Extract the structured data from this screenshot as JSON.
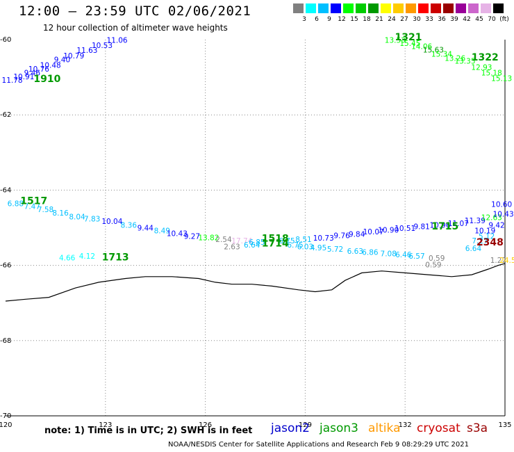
{
  "header": {
    "title": "12:00 – 23:59 UTC 02/06/2021",
    "subtitle": "12 hour collection of altimeter wave heights"
  },
  "legend": {
    "colors": [
      "#808080",
      "#00ffff",
      "#00bfff",
      "#0000ff",
      "#00ff00",
      "#00cc00",
      "#009900",
      "#ffff00",
      "#ffcc00",
      "#ff9900",
      "#ff0000",
      "#cc0000",
      "#990000",
      "#990099",
      "#cc66cc",
      "#e6b3e6",
      "#000000"
    ],
    "labels": [
      "3",
      "6",
      "9",
      "12",
      "15",
      "18",
      "21",
      "24",
      "27",
      "30",
      "33",
      "36",
      "39",
      "42",
      "45",
      "70",
      "(ft)"
    ]
  },
  "footer": {
    "note": "note: 1) Time is in UTC; 2) SWH is in feet",
    "satellites": [
      {
        "name": "jason2",
        "color": "#0000cc"
      },
      {
        "name": "jason3",
        "color": "#009900"
      },
      {
        "name": "altika",
        "color": "#ff9900"
      },
      {
        "name": "cryosat",
        "color": "#cc0000"
      },
      {
        "name": "s3a",
        "color": "#990000"
      }
    ],
    "credit": "NOAA/NESDIS Center for Satellite Applications and Research    Feb  9 08:29:29 UTC 2021"
  },
  "chart_data": {
    "type": "scatter",
    "title": "12:00 – 23:59 UTC 02/06/2021",
    "subtitle": "12 hour collection of altimeter wave heights",
    "units": "ft",
    "xlim": [
      120,
      135
    ],
    "ylim": [
      -70,
      -60
    ],
    "x_ticks": [
      120,
      123,
      126,
      129,
      132,
      135
    ],
    "y_ticks": [
      -60,
      -62,
      -64,
      -66,
      -68,
      -70
    ],
    "grid": true,
    "coast": [
      [
        120,
        -66.95
      ],
      [
        120.6,
        -66.9
      ],
      [
        121.3,
        -66.85
      ],
      [
        122.1,
        -66.6
      ],
      [
        122.8,
        -66.45
      ],
      [
        123.6,
        -66.35
      ],
      [
        124.2,
        -66.3
      ],
      [
        125,
        -66.3
      ],
      [
        125.8,
        -66.35
      ],
      [
        126.3,
        -66.45
      ],
      [
        126.8,
        -66.5
      ],
      [
        127.4,
        -66.5
      ],
      [
        128,
        -66.55
      ],
      [
        128.8,
        -66.65
      ],
      [
        129.3,
        -66.7
      ],
      [
        129.8,
        -66.65
      ],
      [
        130.2,
        -66.4
      ],
      [
        130.7,
        -66.2
      ],
      [
        131.3,
        -66.15
      ],
      [
        132,
        -66.2
      ],
      [
        132.7,
        -66.25
      ],
      [
        133.4,
        -66.3
      ],
      [
        134,
        -66.25
      ],
      [
        134.5,
        -66.1
      ],
      [
        134.8,
        -66.0
      ],
      [
        135,
        -65.95
      ]
    ],
    "passes": [
      {
        "time": "1910",
        "color": "#009900",
        "label_pos": [
          121.25,
          -61.13
        ],
        "points": [
          [
            120.2,
            -61.15,
            11.78,
            "#0000ff"
          ],
          [
            120.55,
            -61.05,
            10.91,
            "#0000ff"
          ],
          [
            120.8,
            -60.95,
            9.46,
            "#0000ff"
          ],
          [
            121.0,
            -60.85,
            10.76,
            "#0000ff"
          ],
          [
            121.35,
            -60.75,
            10.48,
            "#0000ff"
          ],
          [
            121.7,
            -60.6,
            9.4,
            "#0000ff"
          ],
          [
            122.05,
            -60.5,
            10.79,
            "#0000ff"
          ],
          [
            122.45,
            -60.35,
            11.63,
            "#0000ff"
          ],
          [
            122.9,
            -60.22,
            10.53,
            "#0000ff"
          ],
          [
            123.35,
            -60.08,
            11.06,
            "#0000ff"
          ]
        ]
      },
      {
        "time": "1321",
        "color": "#009900",
        "label_pos": [
          132.1,
          -60.02
        ],
        "points": [
          [
            131.7,
            -60.08,
            13.53,
            "#00ff00"
          ],
          [
            132.15,
            -60.17,
            15.45,
            "#00ff00"
          ],
          [
            132.5,
            -60.25,
            14.06,
            "#00ff00"
          ],
          [
            132.85,
            -60.34,
            15.63,
            "#009900"
          ],
          [
            133.1,
            -60.45,
            15.34,
            "#00ff00"
          ],
          [
            133.5,
            -60.56,
            13.26,
            "#00ff00"
          ],
          [
            133.8,
            -60.64,
            13.35,
            "#00ff00"
          ]
        ]
      },
      {
        "time": "1322",
        "color": "#009900",
        "label_pos": [
          134.4,
          -60.55
        ],
        "points": [
          [
            134.3,
            -60.8,
            12.93,
            "#00ff00"
          ],
          [
            134.6,
            -60.95,
            15.18,
            "#00ff00"
          ],
          [
            134.9,
            -61.1,
            15.13,
            "#00ff00"
          ]
        ]
      },
      {
        "time": "1517",
        "color": "#009900",
        "label_pos": [
          120.85,
          -64.37
        ],
        "points": [
          [
            120.3,
            -64.43,
            6.88,
            "#00bfff"
          ],
          [
            120.8,
            -64.5,
            7.47,
            "#00bfff"
          ],
          [
            121.2,
            -64.58,
            7.58,
            "#00bfff"
          ],
          [
            121.65,
            -64.68,
            8.16,
            "#00bfff"
          ],
          [
            122.15,
            -64.78,
            8.04,
            "#00bfff"
          ],
          [
            122.6,
            -64.83,
            7.83,
            "#00bfff"
          ],
          [
            123.2,
            -64.9,
            10.04,
            "#0000ff"
          ],
          [
            123.7,
            -65.0,
            8.36,
            "#00bfff"
          ],
          [
            124.2,
            -65.07,
            9.44,
            "#0000ff"
          ],
          [
            124.7,
            -65.15,
            8.49,
            "#00bfff"
          ],
          [
            125.15,
            -65.22,
            10.43,
            "#0000ff"
          ],
          [
            125.6,
            -65.3,
            9.27,
            "#0000ff"
          ]
        ]
      },
      {
        "time": "1518",
        "color": "#009900",
        "label_pos": [
          128.1,
          -65.37
        ],
        "points": [
          [
            126.1,
            -65.33,
            13.82,
            "#00ff00"
          ],
          [
            126.55,
            -65.38,
            2.54,
            "#808080"
          ],
          [
            127.1,
            -65.42,
            17.74,
            "#e6b3e6"
          ],
          [
            127.55,
            -65.45,
            6.85,
            "#00bfff"
          ],
          [
            128.45,
            -65.42,
            6.75,
            "#00bfff"
          ],
          [
            128.95,
            -65.38,
            8.51,
            "#00bfff"
          ],
          [
            129.55,
            -65.34,
            10.73,
            "#0000ff"
          ],
          [
            130.1,
            -65.28,
            9.76,
            "#0000ff"
          ],
          [
            130.55,
            -65.24,
            9.84,
            "#0000ff"
          ],
          [
            131.05,
            -65.18,
            10.07,
            "#0000ff"
          ],
          [
            131.5,
            -65.13,
            10.9,
            "#0000ff"
          ],
          [
            132.0,
            -65.08,
            10.51,
            "#0000ff"
          ],
          [
            132.5,
            -65.04,
            9.81,
            "#0000ff"
          ],
          [
            133.05,
            -65.0,
            10.96,
            "#0000ff"
          ],
          [
            133.6,
            -64.95,
            11.07,
            "#0000ff"
          ],
          [
            134.1,
            -64.88,
            11.39,
            "#0000ff"
          ],
          [
            134.6,
            -64.8,
            12.63,
            "#00ff00"
          ],
          [
            134.95,
            -64.7,
            10.43,
            "#0000ff"
          ]
        ]
      },
      {
        "time": "1714",
        "color": "#009900",
        "label_pos": [
          128.1,
          -65.5
        ],
        "points": [
          [
            126.8,
            -65.57,
            2.63,
            "#808080"
          ],
          [
            127.4,
            -65.53,
            6.64,
            "#00bfff"
          ],
          [
            128.7,
            -65.53,
            6.75,
            "#00bfff"
          ],
          [
            129.0,
            -65.57,
            6.03,
            "#00bfff"
          ],
          [
            129.4,
            -65.6,
            4.95,
            "#00bfff"
          ],
          [
            129.9,
            -65.64,
            5.72,
            "#00bfff"
          ],
          [
            130.5,
            -65.69,
            6.63,
            "#00bfff"
          ],
          [
            130.95,
            -65.72,
            6.86,
            "#00bfff"
          ],
          [
            131.5,
            -65.76,
            7.08,
            "#00bfff"
          ],
          [
            131.95,
            -65.79,
            6.46,
            "#00bfff"
          ],
          [
            132.35,
            -65.82,
            6.57,
            "#00bfff"
          ]
        ]
      },
      {
        "time": "1713",
        "color": "#009900",
        "label_pos": [
          123.3,
          -65.87
        ],
        "points": [
          [
            121.85,
            -65.87,
            4.66,
            "#00ffff"
          ],
          [
            122.45,
            -65.82,
            4.12,
            "#00ffff"
          ]
        ]
      },
      {
        "time": "1715",
        "color": "#009900",
        "label_pos": [
          133.2,
          -65.05
        ],
        "points": [
          [
            134.4,
            -65.15,
            10.19,
            "#0000ff"
          ],
          [
            134.75,
            -65.0,
            9.42,
            "#0000ff"
          ],
          [
            134.45,
            -65.3,
            5.12,
            "#00bfff"
          ],
          [
            134.25,
            -65.42,
            7.27,
            "#00bfff"
          ],
          [
            134.05,
            -65.62,
            6.64,
            "#00bfff"
          ],
          [
            134.9,
            -64.45,
            10.6,
            "#0000ff"
          ]
        ]
      },
      {
        "time": "2348",
        "color": "#990000",
        "label_pos": [
          134.55,
          -65.47
        ],
        "points": [
          [
            132.95,
            -65.88,
            0.59,
            "#808080"
          ],
          [
            132.85,
            -66.05,
            0.59,
            "#808080"
          ],
          [
            134.8,
            -65.93,
            1.22,
            "#808080"
          ],
          [
            135.15,
            -65.93,
            24.5,
            "#ffcc00"
          ]
        ]
      }
    ]
  }
}
